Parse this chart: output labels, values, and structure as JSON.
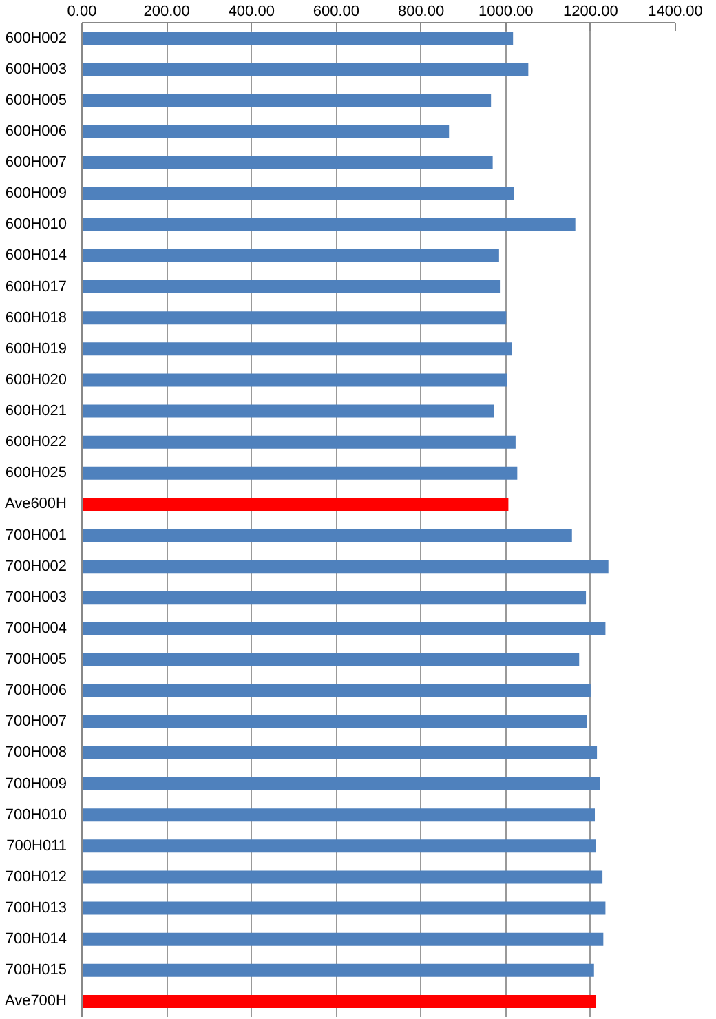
{
  "chart_data": {
    "type": "bar",
    "orientation": "horizontal",
    "categories": [
      "600H002",
      "600H003",
      "600H005",
      "600H006",
      "600H007",
      "600H009",
      "600H010",
      "600H014",
      "600H017",
      "600H018",
      "600H019",
      "600H020",
      "600H021",
      "600H022",
      "600H025",
      "Ave600H",
      "700H001",
      "700H002",
      "700H003",
      "700H004",
      "700H005",
      "700H006",
      "700H007",
      "700H008",
      "700H009",
      "700H010",
      "700H011",
      "700H012",
      "700H013",
      "700H014",
      "700H015",
      "Ave700H"
    ],
    "values": [
      1017,
      1053,
      965,
      866,
      969,
      1019,
      1164,
      984,
      986,
      1001,
      1014,
      1003,
      972,
      1023,
      1027,
      1006,
      1156,
      1242,
      1189,
      1235,
      1173,
      1200,
      1192,
      1215,
      1222,
      1210,
      1212,
      1228,
      1235,
      1230,
      1208,
      1212
    ],
    "colors": [
      "#4f81bd",
      "#4f81bd",
      "#4f81bd",
      "#4f81bd",
      "#4f81bd",
      "#4f81bd",
      "#4f81bd",
      "#4f81bd",
      "#4f81bd",
      "#4f81bd",
      "#4f81bd",
      "#4f81bd",
      "#4f81bd",
      "#4f81bd",
      "#4f81bd",
      "#ff0000",
      "#4f81bd",
      "#4f81bd",
      "#4f81bd",
      "#4f81bd",
      "#4f81bd",
      "#4f81bd",
      "#4f81bd",
      "#4f81bd",
      "#4f81bd",
      "#4f81bd",
      "#4f81bd",
      "#4f81bd",
      "#4f81bd",
      "#4f81bd",
      "#4f81bd",
      "#ff0000"
    ],
    "xlim": [
      0,
      1400
    ],
    "xticks": [
      {
        "value": 0,
        "label": "0.00"
      },
      {
        "value": 200,
        "label": "200.00"
      },
      {
        "value": 400,
        "label": "400.00"
      },
      {
        "value": 600,
        "label": "600.00"
      },
      {
        "value": 800,
        "label": "800.00"
      },
      {
        "value": 1000,
        "label": "1000.00"
      },
      {
        "value": 1200,
        "label": "1200.00"
      },
      {
        "value": 1400,
        "label": "1400.00"
      }
    ],
    "grid": "x"
  }
}
